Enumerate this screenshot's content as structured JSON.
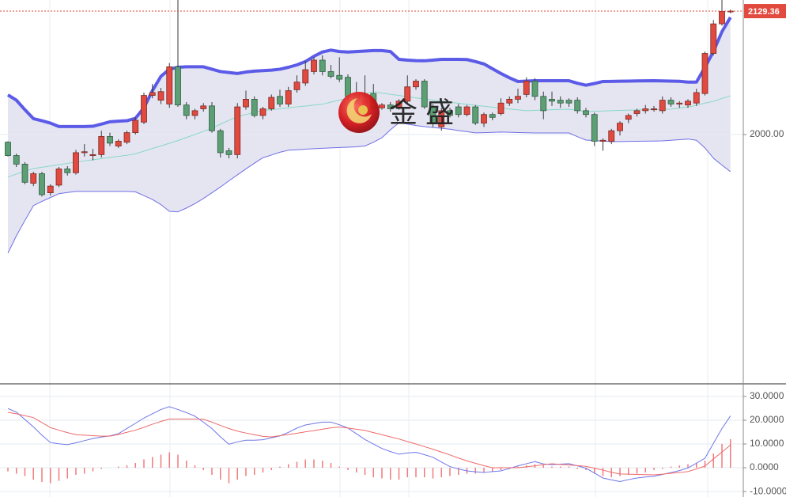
{
  "chart_data": [
    {
      "type": "candlestick",
      "ylim": [
        1738.8,
        2141
      ],
      "yticks": [
        {
          "value": 2000,
          "label": "2000.00"
        }
      ],
      "grid": true,
      "up_color": "#e2493f",
      "down_color": "#5c9f74",
      "last_price": 2129.36,
      "last_price_color": "#e2493f",
      "watermark": "金 盛",
      "open": [
        1992,
        1978,
        1969,
        1949,
        1959,
        1939,
        1947,
        1964,
        1960,
        1981,
        1978,
        1979,
        1998,
        1988,
        1992,
        2002,
        2013,
        2041,
        2036,
        2032,
        2071,
        2031,
        2020,
        2027,
        2030,
        2004,
        1983,
        1979,
        2029,
        2037,
        2020,
        2027,
        2040,
        2032,
        2047,
        2054,
        2066,
        2078,
        2066,
        2062,
        2060,
        2042,
        2032,
        2043,
        2028,
        2031,
        2028,
        2035,
        2050,
        2056,
        2029,
        2008,
        2025,
        2029,
        2021,
        2029,
        2012,
        2021,
        2022,
        2033,
        2037,
        2042,
        2056,
        2040,
        2037,
        2036,
        2036,
        2036,
        2025,
        2021,
        1993,
        1993,
        2004,
        2016,
        2022,
        2025,
        2026,
        2025,
        2036,
        2032,
        2031,
        2033,
        2043,
        2085,
        2116,
        2129
      ],
      "high": [
        1993,
        1980,
        1971,
        1961,
        1961,
        1948,
        1966,
        1967,
        1984,
        1990,
        1985,
        2004,
        2002,
        1995,
        2004,
        2018,
        2044,
        2053,
        2049,
        2075,
        2141,
        2034,
        2027,
        2033,
        2034,
        2006,
        1986,
        2033,
        2046,
        2040,
        2029,
        2042,
        2047,
        2050,
        2062,
        2077,
        2081,
        2083,
        2073,
        2081,
        2063,
        2055,
        2062,
        2053,
        2033,
        2034,
        2037,
        2062,
        2058,
        2058,
        2032,
        2028,
        2028,
        2032,
        2031,
        2031,
        2023,
        2023,
        2038,
        2040,
        2048,
        2060,
        2059,
        2045,
        2045,
        2040,
        2038,
        2039,
        2028,
        2023,
        1996,
        2006,
        2014,
        2022,
        2027,
        2031,
        2030,
        2040,
        2039,
        2035,
        2037,
        2048,
        2087,
        2120,
        2141,
        2131
      ],
      "low": [
        1977,
        1966,
        1948,
        1946,
        1935,
        1936,
        1945,
        1957,
        1958,
        1977,
        1973,
        1976,
        1988,
        1986,
        1990,
        2000,
        2011,
        2038,
        2032,
        2028,
        2029,
        2016,
        2016,
        2024,
        2002,
        1976,
        1975,
        1975,
        2026,
        2018,
        2016,
        2025,
        2029,
        2029,
        2044,
        2051,
        2063,
        2062,
        2059,
        2055,
        2035,
        2028,
        2030,
        2025,
        2026,
        2024,
        2026,
        2033,
        2047,
        2027,
        2008,
        2004,
        2018,
        2018,
        2019,
        2010,
        2008,
        2015,
        2020,
        2030,
        2033,
        2039,
        2036,
        2016,
        2030,
        2028,
        2029,
        2022,
        2018,
        1988,
        1983,
        1990,
        1999,
        2012,
        2019,
        2022,
        2024,
        2022,
        2029,
        2028,
        2028,
        2030,
        2041,
        2083,
        2114,
        2127
      ],
      "close": [
        1978,
        1969,
        1950,
        1959,
        1937,
        1946,
        1964,
        1960,
        1981,
        1982,
        1979,
        1998,
        1991,
        1993,
        2002,
        2015,
        2041,
        2044,
        2045,
        2071,
        2031,
        2020,
        2025,
        2030,
        2004,
        1981,
        1979,
        2029,
        2037,
        2020,
        2027,
        2039,
        2032,
        2046,
        2055,
        2068,
        2078,
        2066,
        2061,
        2058,
        2040,
        2032,
        2035,
        2027,
        2031,
        2027,
        2035,
        2050,
        2056,
        2029,
        2012,
        2025,
        2020,
        2021,
        2029,
        2012,
        2021,
        2018,
        2033,
        2037,
        2040,
        2056,
        2040,
        2025,
        2035,
        2033,
        2033,
        2025,
        2021,
        1993,
        1994,
        2004,
        2012,
        2020,
        2025,
        2027,
        2027,
        2036,
        2032,
        2033,
        2035,
        2044,
        2085,
        2116,
        2129,
        2129.36
      ],
      "band_fill": "#e5e5f2",
      "upper": {
        "color": "#5b5be8",
        "values": [
          2041.5,
          2036,
          2026,
          2016.7,
          2014.5,
          2012,
          2008.4,
          2008.4,
          2008.4,
          2008.4,
          2008.7,
          2011,
          2013.4,
          2014,
          2014.5,
          2017,
          2028,
          2046,
          2061,
          2068.5,
          2070.5,
          2071,
          2071,
          2071,
          2068.5,
          2066,
          2065,
          2064,
          2065.5,
          2066.5,
          2067,
          2067.5,
          2068.5,
          2070.5,
          2073,
          2076.5,
          2082,
          2086.5,
          2088.5,
          2087,
          2086.5,
          2087,
          2087.5,
          2088,
          2088,
          2087,
          2078.8,
          2078,
          2077.5,
          2077.3,
          2078,
          2078.8,
          2078.8,
          2078.8,
          2078.6,
          2076.5,
          2074,
          2069,
          2064,
          2059.5,
          2055.6,
          2056,
          2056.4,
          2056.4,
          2056.4,
          2056.4,
          2056.4,
          2053.8,
          2051.7,
          2053.5,
          2055.6,
          2055.7,
          2055.9,
          2056,
          2056.2,
          2056.3,
          2056.4,
          2056.2,
          2056,
          2055.8,
          2055,
          2055,
          2070.5,
          2087.1,
          2107.8,
          2122.8
        ]
      },
      "middle": {
        "color": "#86d8c4",
        "values": [
          1955.5,
          1958.6,
          1961.6,
          1964.4,
          1965.7,
          1967.1,
          1968.4,
          1969.8,
          1971.1,
          1972.4,
          1973.6,
          1974.8,
          1976,
          1977.1,
          1978.3,
          1979.8,
          1982.6,
          1985.4,
          1988.1,
          1990.9,
          1993.7,
          1996.9,
          2000.1,
          2003.3,
          2006.7,
          2010.8,
          2015,
          2018.7,
          2021,
          2023.2,
          2025.2,
          2026.1,
          2027,
          2028,
          2029,
          2029.9,
          2030.9,
          2031.8,
          2034,
          2036,
          2038.6,
          2040.8,
          2043,
          2044.7,
          2043.5,
          2042.2,
          2041,
          2039.7,
          2038.5,
          2037.2,
          2036.1,
          2035,
          2033.9,
          2032.8,
          2031.7,
          2030.6,
          2029.7,
          2028.7,
          2027.8,
          2026.8,
          2025.9,
          2025,
          2025.3,
          2025.7,
          2026,
          2026.3,
          2026.6,
          2025.3,
          2024.1,
          2024.4,
          2024.7,
          2025,
          2025.3,
          2025.5,
          2025.8,
          2026,
          2026.2,
          2026.4,
          2026.7,
          2027.8,
          2028.9,
          2030.6,
          2033,
          2034.9,
          2037.8,
          2040.7
        ]
      },
      "lower": {
        "color": "#6f6fe6",
        "values": [
          1875.7,
          1894,
          1910,
          1925.5,
          1930,
          1934,
          1938,
          1939.3,
          1940.4,
          1940.4,
          1940.4,
          1940.4,
          1940.4,
          1940.4,
          1940.4,
          1940,
          1936,
          1932,
          1926.6,
          1919.6,
          1919,
          1923,
          1927.6,
          1933,
          1939,
          1945,
          1951.5,
          1957.8,
          1964,
          1970,
          1975.8,
          1978.5,
          1981.5,
          1983.6,
          1984.1,
          1984.7,
          1985.2,
          1985.6,
          1986,
          1986.4,
          1986.8,
          1987.2,
          1988,
          1992,
          1996.7,
          2005,
          2012.3,
          2011,
          2009.5,
          2008.3,
          2007.4,
          2006.5,
          2005.6,
          2004.2,
          2003,
          2001.8,
          2002,
          2002.3,
          2002.6,
          2002.4,
          2002.1,
          2001.9,
          2001.7,
          2001.7,
          2001.7,
          2001.7,
          2001.7,
          1997.8,
          1994.2,
          1993.7,
          1993.1,
          1992.6,
          1992.7,
          1992.9,
          1993,
          1993.1,
          1993.2,
          1993.4,
          1994,
          1994.6,
          1995.3,
          1994,
          1986,
          1975.2,
          1968,
          1961.1
        ]
      }
    },
    {
      "type": "macd",
      "ylim": [
        -12.3,
        35.3
      ],
      "yticks": [
        {
          "value": 30,
          "label": "30.0000"
        },
        {
          "value": 20,
          "label": "20.0000"
        },
        {
          "value": 10,
          "label": "10.0000"
        },
        {
          "value": 0,
          "label": "0.0000"
        },
        {
          "value": -10,
          "label": "-10.0000"
        }
      ],
      "grid": true,
      "series": [
        {
          "color": "#6f76e8",
          "values": [
            24.9,
            23.4,
            20.3,
            17.2,
            13.7,
            10.6,
            10.1,
            9.7,
            10.5,
            11.4,
            12.3,
            12.9,
            13.4,
            14.3,
            16.5,
            18.7,
            20.9,
            22.7,
            24.5,
            25.7,
            24.5,
            23.2,
            21.7,
            19.2,
            16.5,
            13,
            9.9,
            10.9,
            11.6,
            11.6,
            11.8,
            12.6,
            13.4,
            14.9,
            16.7,
            18,
            18.6,
            19.2,
            19.2,
            18.1,
            16.7,
            14.3,
            11.9,
            10,
            8.1,
            6.8,
            5.7,
            6.2,
            6.5,
            5.5,
            4.4,
            2.4,
            0.5,
            -0.5,
            -1.3,
            -1.7,
            -2,
            -1.6,
            -1.3,
            -0.3,
            0.8,
            1.7,
            2.6,
            1.6,
            1.3,
            1.5,
            1.7,
            0.8,
            -0.2,
            -2.2,
            -4.3,
            -5.1,
            -5.8,
            -5,
            -4.3,
            -3.9,
            -3.6,
            -2.8,
            -2,
            -1.2,
            -0.1,
            1.9,
            4,
            10.3,
            16.5,
            21.8
          ]
        },
        {
          "color": "#ee6a6a",
          "values": [
            23.3,
            22.7,
            21.9,
            21.1,
            19,
            16.9,
            15.8,
            14.8,
            13.9,
            13.7,
            13.5,
            13.3,
            13.3,
            14,
            14.9,
            15.8,
            17,
            18.3,
            19.5,
            20.5,
            20.5,
            20.5,
            20.5,
            20.4,
            19.2,
            17.8,
            16.5,
            15.4,
            14.6,
            13.9,
            13.2,
            13,
            13.5,
            14,
            14.5,
            15.1,
            15.6,
            16.2,
            16.8,
            17.1,
            16.7,
            16.2,
            15.7,
            14.8,
            13.9,
            13,
            12.1,
            11,
            10,
            8.9,
            7.8,
            6.6,
            5.4,
            4.1,
            2.9,
            1.9,
            0.9,
            0,
            0,
            0,
            0,
            0.4,
            0.8,
            1.3,
            1.7,
            1.4,
            1.2,
            0.9,
            0.6,
            -0.2,
            -1,
            -1.9,
            -2.6,
            -2.7,
            -2.8,
            -2.9,
            -3,
            -2.7,
            -2.3,
            -2,
            -1.6,
            -0.5,
            0.7,
            3.7,
            6.6,
            9.6
          ]
        }
      ],
      "histogram": {
        "color": "#f07b7b",
        "values": [
          -1.5,
          -2.5,
          -3.5,
          -5,
          -6,
          -6.5,
          -5.5,
          -4.5,
          -3,
          -2.5,
          -1.5,
          -0.5,
          0,
          0.5,
          1,
          2,
          3.5,
          4.5,
          5.5,
          6.5,
          5.5,
          3,
          1,
          -1,
          -3,
          -5,
          -6.5,
          -5,
          -3.5,
          -3,
          -2,
          -1,
          0.5,
          1.5,
          2.5,
          3.5,
          3.5,
          3,
          2,
          0.5,
          -1,
          -2,
          -3,
          -4,
          -4.5,
          -5,
          -5,
          -4,
          -4,
          -4,
          -4.5,
          -4,
          -3.5,
          -3,
          -2.5,
          -2.5,
          -2,
          -1.5,
          -1,
          -0.5,
          0.5,
          1,
          1.5,
          1,
          0.5,
          0.5,
          0.5,
          -0.5,
          -1,
          -2.5,
          -3.5,
          -4,
          -3.5,
          -3,
          -2.5,
          -2,
          -1,
          -0.5,
          0.5,
          1,
          1.5,
          2,
          3,
          6,
          10,
          12
        ]
      }
    }
  ]
}
